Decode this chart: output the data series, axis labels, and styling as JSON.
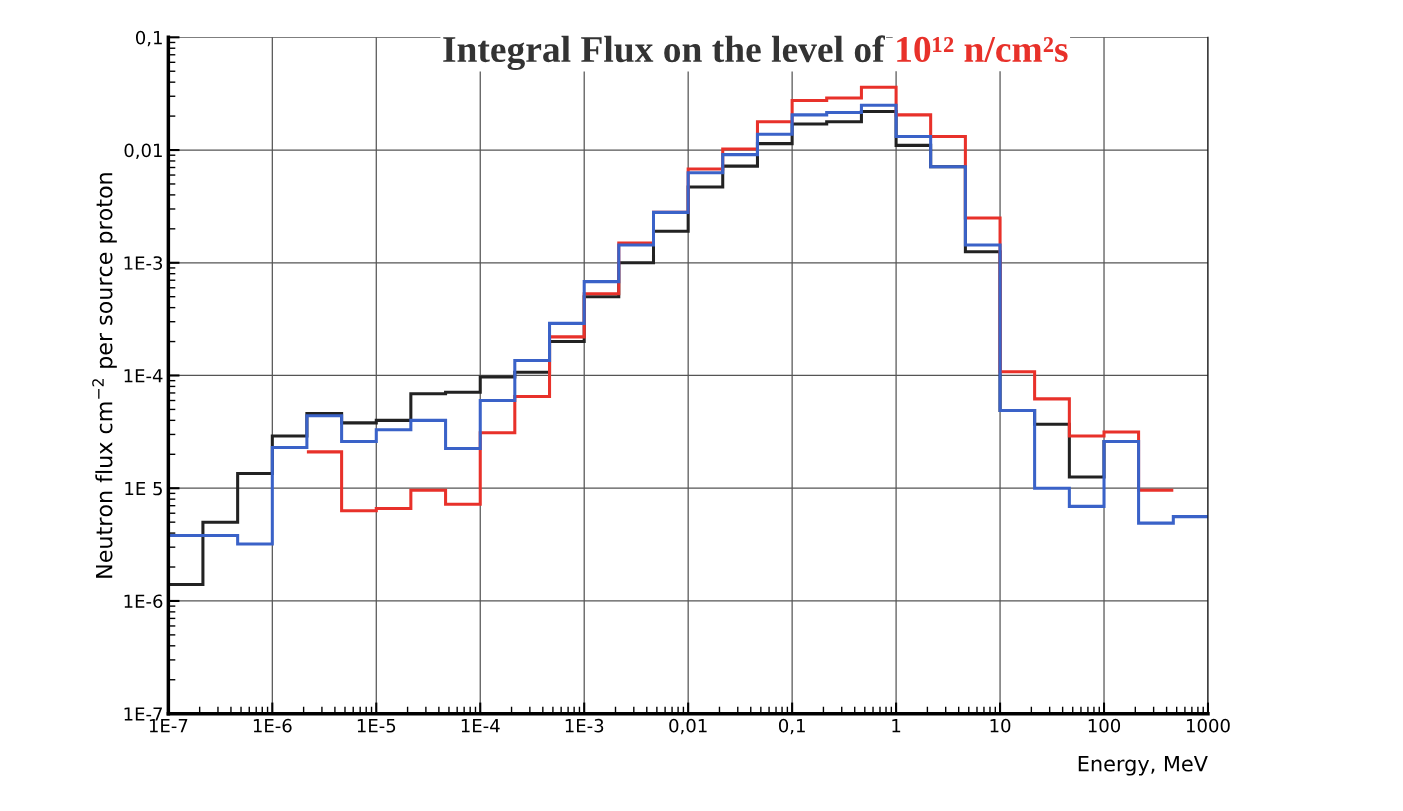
{
  "chart_data": {
    "type": "histogram",
    "title": "Integral Flux on the level of",
    "subtitle": "10¹² n/cm²s",
    "xlabel": "Energy, MeV",
    "ylabel": "Neutron flux cm$^{−2}$ per source proton",
    "bins": [
      1e-07,
      2.15e-07,
      4.64e-07,
      1e-06,
      2.15e-06,
      4.64e-06,
      1e-05,
      2.15e-05,
      4.64e-05,
      0.0001,
      0.000215,
      0.000464,
      0.001,
      0.00215,
      0.00464,
      0.01,
      0.0215,
      0.0464,
      0.1,
      0.215,
      0.464,
      1,
      2.15,
      4.64,
      10,
      21.5,
      46.4,
      100,
      215,
      464,
      1000
    ],
    "series": [
      {
        "color": "#222222",
        "bins": [
          1e-07,
          2.15e-07,
          4.64e-07,
          1e-06,
          2.15e-06,
          4.64e-06,
          1e-05,
          2.15e-05,
          4.64e-05,
          0.0001,
          0.000215,
          0.000464,
          0.001,
          0.00215,
          0.00464,
          0.01,
          0.0215,
          0.0464,
          0.1,
          0.215,
          0.464,
          1,
          2.15,
          4.64,
          10,
          21.5,
          46.4,
          100,
          215
        ],
        "values": [
          1.4e-06,
          5e-06,
          1.35e-05,
          2.9e-05,
          4.6e-05,
          3.8e-05,
          4e-05,
          6.9e-05,
          7.1e-05,
          9.7e-05,
          0.000107,
          0.0002,
          0.0005,
          0.001,
          0.0019,
          0.0047,
          0.0072,
          0.0114,
          0.017,
          0.0178,
          0.022,
          0.011,
          0.0071,
          0.00125,
          4.9e-05,
          3.7e-05,
          1.26e-05,
          2.6e-05
        ]
      },
      {
        "color": "#e8312a",
        "bins": [
          2.15e-06,
          4.64e-06,
          1e-05,
          2.15e-05,
          4.64e-05,
          0.0001,
          0.000215,
          0.000464,
          0.001,
          0.00215,
          0.00464,
          0.01,
          0.0215,
          0.0464,
          0.1,
          0.215,
          0.464,
          1,
          2.15,
          4.64,
          10,
          21.5,
          46.4,
          100,
          215,
          464
        ],
        "values": [
          2.1e-05,
          6.3e-06,
          6.6e-06,
          9.6e-06,
          7.2e-06,
          3.1e-05,
          6.5e-05,
          0.00022,
          0.00053,
          0.0015,
          0.0028,
          0.0068,
          0.0102,
          0.0178,
          0.0275,
          0.029,
          0.036,
          0.0205,
          0.0132,
          0.0025,
          0.000108,
          6.2e-05,
          2.9e-05,
          3.15e-05,
          9.6e-06
        ]
      },
      {
        "color": "#3a62c8",
        "values": [
          3.8e-06,
          3.8e-06,
          3.2e-06,
          2.3e-05,
          4.4e-05,
          2.6e-05,
          3.3e-05,
          4e-05,
          2.25e-05,
          6e-05,
          0.000136,
          0.00029,
          0.00068,
          0.00144,
          0.0028,
          0.0063,
          0.0091,
          0.0138,
          0.0205,
          0.0215,
          0.025,
          0.0132,
          0.0071,
          0.00144,
          4.9e-05,
          1e-05,
          6.9e-06,
          2.6e-05,
          4.9e-06,
          5.6e-06
        ]
      }
    ],
    "log": "xy",
    "xlim": [
      1e-07,
      1000
    ],
    "ylim": [
      1e-07,
      0.1
    ],
    "xticks": [
      {
        "value": 1e-07,
        "label": "1E-7"
      },
      {
        "value": 1e-06,
        "label": "1E-6"
      },
      {
        "value": 1e-05,
        "label": "1E-5"
      },
      {
        "value": 0.0001,
        "label": "1E-4"
      },
      {
        "value": 0.001,
        "label": "1E-3"
      },
      {
        "value": 0.01,
        "label": "0,01"
      },
      {
        "value": 0.1,
        "label": "0,1"
      },
      1,
      10,
      100,
      1000
    ],
    "yticks": [
      {
        "value": 1e-07,
        "label": "1E-7"
      },
      {
        "value": 1e-06,
        "label": "1E-6"
      },
      {
        "value": 1e-05,
        "label": "1E 5"
      },
      {
        "value": 0.0001,
        "label": "1E-4"
      },
      {
        "value": 0.001,
        "label": "1E-3"
      },
      {
        "value": 0.01,
        "label": "0,01"
      },
      {
        "value": 0.1,
        "label": "0,1"
      }
    ],
    "grid": true
  }
}
